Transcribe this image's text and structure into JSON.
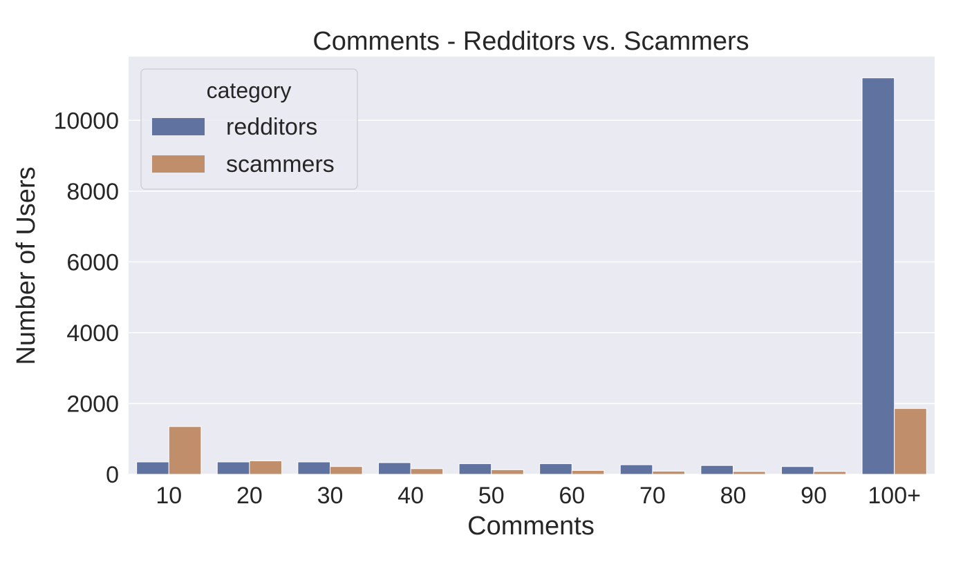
{
  "chart_data": {
    "type": "bar",
    "title": "Comments - Redditors vs. Scammers",
    "xlabel": "Comments",
    "ylabel": "Number of Users",
    "categories": [
      "10",
      "20",
      "30",
      "40",
      "50",
      "60",
      "70",
      "80",
      "90",
      "100+"
    ],
    "series": [
      {
        "name": "redditors",
        "color": "#5f72a0",
        "values": [
          350,
          350,
          350,
          330,
          300,
          300,
          270,
          250,
          220,
          11200
        ]
      },
      {
        "name": "scammers",
        "color": "#c08e6a",
        "values": [
          1350,
          380,
          220,
          160,
          130,
          110,
          90,
          80,
          80,
          1860
        ]
      }
    ],
    "ylim": [
      0,
      11800
    ],
    "yticks": [
      0,
      2000,
      4000,
      6000,
      8000,
      10000
    ],
    "ytick_labels": [
      "0",
      "2000",
      "4000",
      "6000",
      "8000",
      "10000"
    ],
    "grid": true,
    "legend": {
      "title": "category",
      "placement": "top-left"
    },
    "colors": {
      "plot_background": "#eaeaf2",
      "grid": "#ffffff",
      "text": "#262626"
    }
  }
}
